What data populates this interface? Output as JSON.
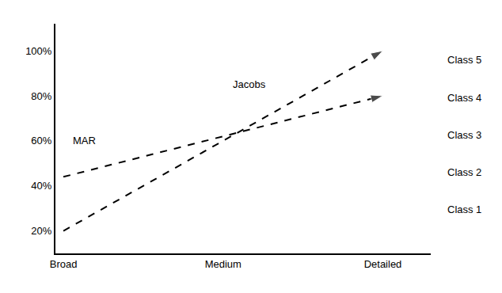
{
  "chart_data": {
    "type": "line",
    "xlim": [
      -0.05,
      2.3
    ],
    "xticks": [
      {
        "value": 0,
        "label": "Broad"
      },
      {
        "value": 1,
        "label": "Medium"
      },
      {
        "value": 2,
        "label": "Detailed"
      }
    ],
    "ylim": [
      0.1,
      1.12
    ],
    "yticks": [
      {
        "value": 0.2,
        "label": "20%"
      },
      {
        "value": 0.4,
        "label": "40%"
      },
      {
        "value": 0.6,
        "label": "60%"
      },
      {
        "value": 0.8,
        "label": "80%"
      },
      {
        "value": 1.0,
        "label": "100%"
      }
    ],
    "series": [
      {
        "x": [
          0,
          2
        ],
        "values": [
          0.2,
          1.0
        ],
        "color": "#000000",
        "line_style": "dashed",
        "marker": "arrow"
      },
      {
        "x": [
          0,
          2
        ],
        "values": [
          0.44,
          0.8
        ],
        "color": "#000000",
        "line_style": "dashed",
        "marker": "arrow"
      }
    ],
    "annotations": [
      {
        "text": "MAR",
        "x": 0.05,
        "y": 0.6
      },
      {
        "text": "Jacobs",
        "x": 1.05,
        "y": 0.85
      },
      {
        "text": "Class 5",
        "y": 0.96
      },
      {
        "text": "Class 4",
        "y": 0.79
      },
      {
        "text": "Class 3",
        "y": 0.625
      },
      {
        "text": "Class 2",
        "y": 0.46
      },
      {
        "text": "Class 1",
        "y": 0.295
      }
    ],
    "grid": false
  }
}
